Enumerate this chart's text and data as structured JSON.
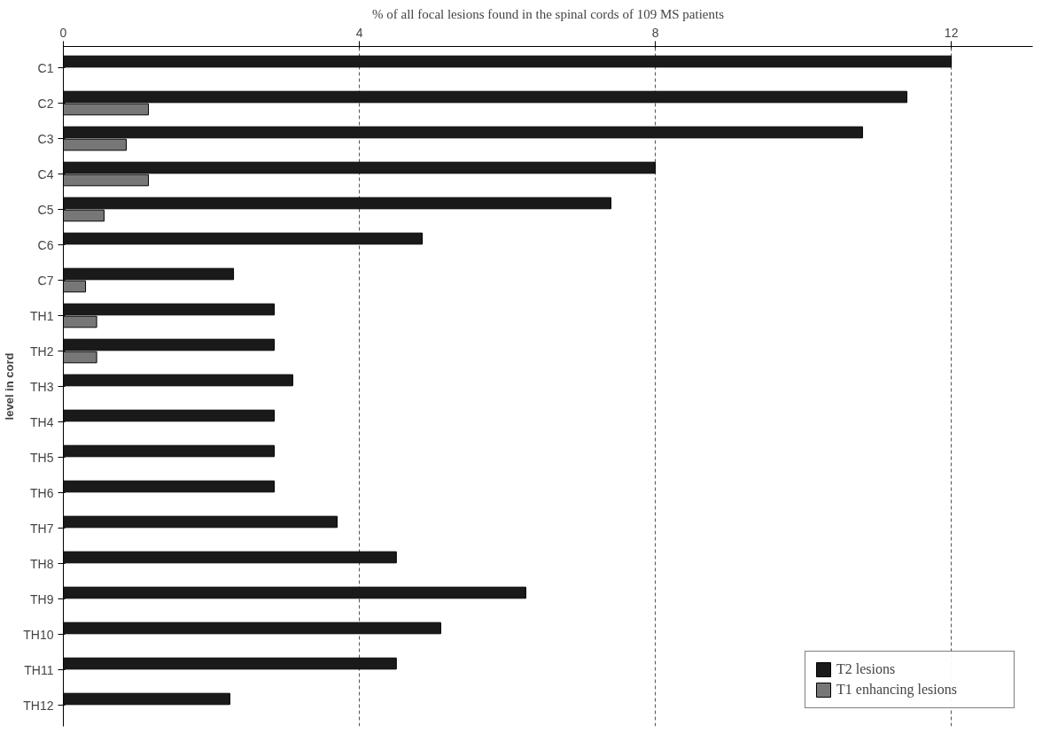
{
  "chart_data": {
    "type": "bar",
    "orientation": "horizontal",
    "title": "% of all focal lesions found in the spinal cords of 109 MS patients",
    "ylabel": "level in cord",
    "categories": [
      "C1",
      "C2",
      "C3",
      "C4",
      "C5",
      "C6",
      "C7",
      "TH1",
      "TH2",
      "TH3",
      "TH4",
      "TH5",
      "TH6",
      "TH7",
      "TH8",
      "TH9",
      "TH10",
      "TH11",
      "TH12"
    ],
    "series": [
      {
        "name": "T2 lesions",
        "color": "#1a1a1a",
        "values": [
          12.0,
          11.4,
          10.8,
          8.0,
          7.4,
          4.85,
          2.3,
          2.85,
          2.85,
          3.1,
          2.85,
          2.85,
          2.85,
          3.7,
          4.5,
          6.25,
          5.1,
          4.5,
          2.25
        ]
      },
      {
        "name": "T1 enhancing lesions",
        "color": "#777777",
        "values": [
          null,
          1.15,
          0.85,
          1.15,
          0.55,
          null,
          0.3,
          0.45,
          0.45,
          null,
          null,
          null,
          null,
          null,
          null,
          null,
          null,
          null,
          null
        ]
      }
    ],
    "xlim": [
      0,
      13.1
    ],
    "xticks": [
      0,
      4,
      8,
      12
    ],
    "grid": "x",
    "legend": "bottom right"
  }
}
